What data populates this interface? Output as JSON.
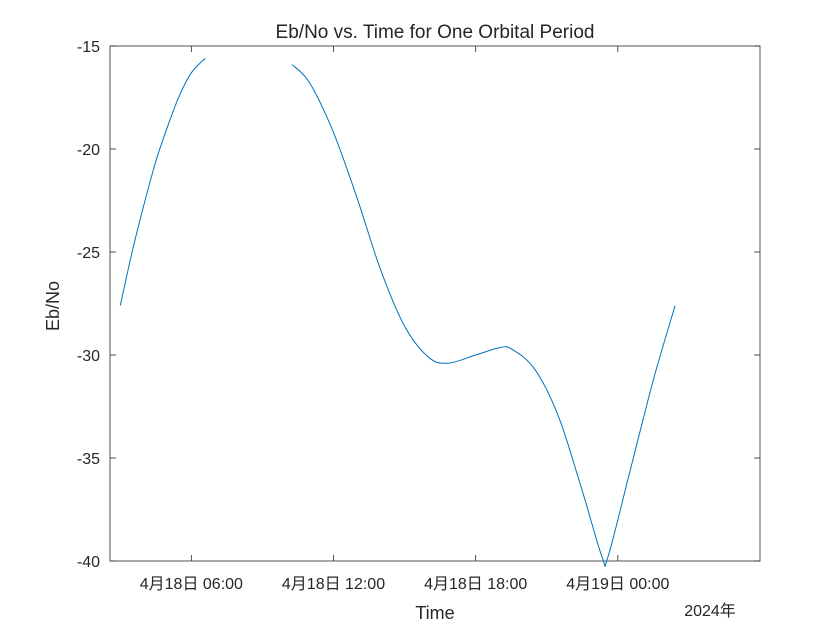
{
  "chart_data": {
    "type": "line",
    "title": "Eb/No vs. Time for One Orbital Period",
    "xlabel": "Time",
    "ylabel": "Eb/No",
    "x_secondary_label": "2024年",
    "xlim": [
      "2024-04-18T02:34",
      "2024-04-19T06:00"
    ],
    "ylim": [
      -40,
      -15
    ],
    "xticks": [
      {
        "t": "2024-04-18T06:00",
        "label": "4月18日 06:00"
      },
      {
        "t": "2024-04-18T12:00",
        "label": "4月18日 12:00"
      },
      {
        "t": "2024-04-18T18:00",
        "label": "4月18日 18:00"
      },
      {
        "t": "2024-04-19T00:00",
        "label": "4月19日 00:00"
      }
    ],
    "yticks": [
      -40,
      -35,
      -30,
      -25,
      -20,
      -15
    ],
    "grid": false,
    "series": [
      {
        "color": "#0072bd",
        "segments": [
          [
            [
              "2024-04-18T03:00",
              -27.6
            ],
            [
              "2024-04-18T03:30",
              -25.0
            ],
            [
              "2024-04-18T04:00",
              -22.7
            ],
            [
              "2024-04-18T04:30",
              -20.6
            ],
            [
              "2024-04-18T05:00",
              -18.9
            ],
            [
              "2024-04-18T05:30",
              -17.4
            ],
            [
              "2024-04-18T06:00",
              -16.3
            ],
            [
              "2024-04-18T06:35",
              -15.6
            ]
          ],
          [
            [
              "2024-04-18T10:15",
              -15.9
            ],
            [
              "2024-04-18T11:00",
              -16.8
            ],
            [
              "2024-04-18T12:00",
              -19.2
            ],
            [
              "2024-04-18T13:00",
              -22.4
            ],
            [
              "2024-04-18T14:00",
              -25.9
            ],
            [
              "2024-04-18T15:00",
              -28.6
            ],
            [
              "2024-04-18T16:00",
              -30.1
            ],
            [
              "2024-04-18T16:50",
              -30.4
            ],
            [
              "2024-04-18T18:00",
              -30.0
            ],
            [
              "2024-04-18T19:00",
              -29.65
            ],
            [
              "2024-04-18T19:30",
              -29.7
            ],
            [
              "2024-04-18T20:30",
              -30.7
            ],
            [
              "2024-04-18T21:30",
              -33.0
            ],
            [
              "2024-04-18T22:30",
              -36.6
            ],
            [
              "2024-04-18T23:20",
              -39.8
            ],
            [
              "2024-04-18T23:35",
              -39.8
            ],
            [
              "2024-04-19T00:30",
              -35.7
            ],
            [
              "2024-04-19T01:30",
              -31.2
            ],
            [
              "2024-04-19T02:25",
              -27.6
            ]
          ]
        ]
      }
    ]
  }
}
